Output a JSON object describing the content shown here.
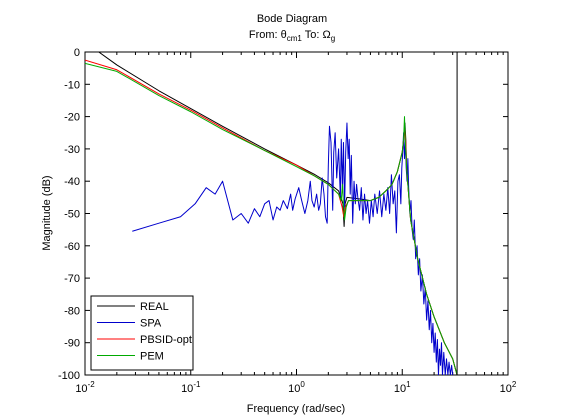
{
  "chart_data": {
    "type": "line",
    "title": "Bode Diagram",
    "subtitle": "From: θ_cm1  To: Ω_g",
    "subtitle_parts": {
      "from": "From: θ",
      "from_sub": "cm1",
      "to": "  To: Ω",
      "to_sub": "g"
    },
    "xlabel": "Frequency  (rad/sec)",
    "ylabel": "Magnitude (dB)",
    "xscale": "log",
    "xlim": [
      0.01,
      100
    ],
    "ylim": [
      -100,
      0
    ],
    "grid": false,
    "x_ticks": [
      0.01,
      0.1,
      1,
      10,
      100
    ],
    "x_tick_labels": [
      {
        "base": "10",
        "exp": "-2"
      },
      {
        "base": "10",
        "exp": "-1"
      },
      {
        "base": "10",
        "exp": "0"
      },
      {
        "base": "10",
        "exp": "1"
      },
      {
        "base": "10",
        "exp": "2"
      }
    ],
    "y_ticks": [
      0,
      -10,
      -20,
      -30,
      -40,
      -50,
      -60,
      -70,
      -80,
      -90,
      -100
    ],
    "y_tick_labels": [
      "0",
      "-10",
      "-20",
      "-30",
      "-40",
      "-50",
      "-60",
      "-70",
      "-80",
      "-90",
      "-100"
    ],
    "vertical_line": {
      "x": 33,
      "color": "#000000"
    },
    "legend": {
      "position": "bottom-left"
    },
    "series": [
      {
        "name": "REAL",
        "color": "#000000",
        "points": [
          [
            0.0135,
            0
          ],
          [
            0.02,
            -4
          ],
          [
            0.05,
            -12
          ],
          [
            0.1,
            -17.5
          ],
          [
            0.2,
            -23
          ],
          [
            0.5,
            -30
          ],
          [
            1,
            -35
          ],
          [
            1.5,
            -38
          ],
          [
            2,
            -40.5
          ],
          [
            2.5,
            -43
          ],
          [
            2.75,
            -47
          ],
          [
            2.82,
            -54
          ],
          [
            2.88,
            -47
          ],
          [
            3,
            -45
          ],
          [
            4,
            -45.5
          ],
          [
            5,
            -46
          ],
          [
            6,
            -45
          ],
          [
            7,
            -43
          ],
          [
            8,
            -41
          ],
          [
            9,
            -37
          ],
          [
            10,
            -31
          ],
          [
            10.4,
            -26
          ],
          [
            10.6,
            -22
          ],
          [
            10.8,
            -27
          ],
          [
            11,
            -36
          ],
          [
            12,
            -52
          ],
          [
            14,
            -64
          ],
          [
            17,
            -75
          ],
          [
            20,
            -82
          ],
          [
            25,
            -90
          ],
          [
            30,
            -95
          ],
          [
            33,
            -100
          ]
        ]
      },
      {
        "name": "SPA",
        "color": "#0000cc",
        "points": [
          [
            0.028,
            -55.5
          ],
          [
            0.05,
            -53
          ],
          [
            0.08,
            -51
          ],
          [
            0.11,
            -47
          ],
          [
            0.14,
            -42
          ],
          [
            0.17,
            -44
          ],
          [
            0.2,
            -40
          ],
          [
            0.25,
            -52
          ],
          [
            0.3,
            -50
          ],
          [
            0.35,
            -53
          ],
          [
            0.4,
            -48.5
          ],
          [
            0.45,
            -51
          ],
          [
            0.5,
            -47
          ],
          [
            0.55,
            -46
          ],
          [
            0.6,
            -52
          ],
          [
            0.65,
            -48
          ],
          [
            0.7,
            -49
          ],
          [
            0.75,
            -46
          ],
          [
            0.82,
            -48.5
          ],
          [
            0.88,
            -44
          ],
          [
            0.92,
            -49
          ],
          [
            0.97,
            -45.5
          ],
          [
            1.05,
            -42
          ],
          [
            1.12,
            -46
          ],
          [
            1.2,
            -50
          ],
          [
            1.28,
            -46
          ],
          [
            1.35,
            -40
          ],
          [
            1.4,
            -46
          ],
          [
            1.47,
            -48
          ],
          [
            1.55,
            -44
          ],
          [
            1.62,
            -49
          ],
          [
            1.68,
            -47
          ],
          [
            1.75,
            -39
          ],
          [
            1.82,
            -44
          ],
          [
            1.88,
            -51
          ],
          [
            1.95,
            -53
          ],
          [
            2.0,
            -35
          ],
          [
            2.05,
            -23
          ],
          [
            2.12,
            -28
          ],
          [
            2.2,
            -49
          ],
          [
            2.25,
            -31
          ],
          [
            2.32,
            -25
          ],
          [
            2.4,
            -39
          ],
          [
            2.5,
            -30
          ],
          [
            2.6,
            -45
          ],
          [
            2.65,
            -27
          ],
          [
            2.72,
            -42
          ],
          [
            2.78,
            -28
          ],
          [
            2.85,
            -48
          ],
          [
            2.92,
            -31
          ],
          [
            3.0,
            -22
          ],
          [
            3.08,
            -33
          ],
          [
            3.15,
            -27
          ],
          [
            3.22,
            -44
          ],
          [
            3.3,
            -32
          ],
          [
            3.4,
            -53
          ],
          [
            3.5,
            -40
          ],
          [
            3.6,
            -47
          ],
          [
            3.7,
            -41
          ],
          [
            3.8,
            -45
          ],
          [
            3.95,
            -49
          ],
          [
            4.1,
            -42
          ],
          [
            4.25,
            -52
          ],
          [
            4.4,
            -44
          ],
          [
            4.55,
            -50
          ],
          [
            4.7,
            -46
          ],
          [
            4.9,
            -53
          ],
          [
            5.1,
            -46
          ],
          [
            5.3,
            -51
          ],
          [
            5.5,
            -44
          ],
          [
            5.8,
            -50
          ],
          [
            6.1,
            -43
          ],
          [
            6.4,
            -51
          ],
          [
            6.7,
            -44
          ],
          [
            7.0,
            -49
          ],
          [
            7.3,
            -42
          ],
          [
            7.6,
            -50
          ],
          [
            7.9,
            -38
          ],
          [
            8.2,
            -47
          ],
          [
            8.5,
            -43
          ],
          [
            8.8,
            -56
          ],
          [
            9.1,
            -40
          ],
          [
            9.4,
            -38
          ],
          [
            9.7,
            -47
          ],
          [
            9.9,
            -36
          ],
          [
            10.1,
            -31
          ],
          [
            10.3,
            -25
          ],
          [
            10.5,
            -33
          ],
          [
            10.7,
            -28
          ],
          [
            10.9,
            -36
          ],
          [
            11.1,
            -40
          ],
          [
            11.3,
            -33
          ],
          [
            11.5,
            -42
          ],
          [
            11.8,
            -50
          ],
          [
            12.1,
            -46
          ],
          [
            12.4,
            -55
          ],
          [
            12.7,
            -58
          ],
          [
            13.0,
            -52
          ],
          [
            13.4,
            -64
          ],
          [
            13.8,
            -60
          ],
          [
            14.2,
            -69
          ],
          [
            14.6,
            -64
          ],
          [
            15.0,
            -74
          ],
          [
            15.5,
            -69
          ],
          [
            16.0,
            -78
          ],
          [
            16.5,
            -73
          ],
          [
            17.0,
            -83
          ],
          [
            17.5,
            -77
          ],
          [
            18.0,
            -86
          ],
          [
            18.5,
            -80
          ],
          [
            19.0,
            -90
          ],
          [
            19.5,
            -84
          ],
          [
            20.0,
            -93
          ],
          [
            20.5,
            -87
          ],
          [
            21.0,
            -96
          ],
          [
            21.5,
            -89
          ],
          [
            22.0,
            -100
          ],
          [
            22.5,
            -92
          ],
          [
            23.0,
            -97
          ],
          [
            23.5,
            -90
          ],
          [
            24.0,
            -100
          ],
          [
            24.7,
            -93
          ],
          [
            25.5,
            -100
          ],
          [
            26.2,
            -95
          ],
          [
            27.0,
            -100
          ],
          [
            27.7,
            -96
          ],
          [
            28.5,
            -100
          ],
          [
            29.3,
            -97
          ],
          [
            30.0,
            -100
          ]
        ]
      },
      {
        "name": "PBSID-opt",
        "color": "#ff0000",
        "points": [
          [
            0.01,
            -2.5
          ],
          [
            0.02,
            -5.5
          ],
          [
            0.05,
            -13
          ],
          [
            0.1,
            -18
          ],
          [
            0.2,
            -23.5
          ],
          [
            0.5,
            -30.5
          ],
          [
            1,
            -35
          ],
          [
            1.5,
            -38.5
          ],
          [
            2,
            -41
          ],
          [
            2.5,
            -44
          ],
          [
            2.7,
            -48
          ],
          [
            2.8,
            -51
          ],
          [
            2.9,
            -48
          ],
          [
            3.1,
            -46
          ],
          [
            4,
            -46
          ],
          [
            5,
            -46
          ],
          [
            6,
            -45
          ],
          [
            7,
            -43
          ],
          [
            8,
            -41
          ],
          [
            9,
            -37
          ],
          [
            10,
            -31
          ],
          [
            10.4,
            -26
          ],
          [
            10.6,
            -24
          ],
          [
            10.8,
            -28
          ],
          [
            11,
            -36
          ],
          [
            12,
            -52
          ],
          [
            14,
            -64
          ],
          [
            17,
            -75
          ],
          [
            20,
            -82
          ],
          [
            25,
            -90
          ],
          [
            30,
            -95
          ],
          [
            33,
            -100
          ]
        ]
      },
      {
        "name": "PEM",
        "color": "#00aa00",
        "points": [
          [
            0.01,
            -3.5
          ],
          [
            0.02,
            -6
          ],
          [
            0.05,
            -13.5
          ],
          [
            0.1,
            -18.5
          ],
          [
            0.2,
            -24
          ],
          [
            0.5,
            -30.5
          ],
          [
            1,
            -35.5
          ],
          [
            1.5,
            -38.5
          ],
          [
            2,
            -41
          ],
          [
            2.5,
            -44
          ],
          [
            2.65,
            -46
          ],
          [
            2.72,
            -41
          ],
          [
            2.78,
            -47
          ],
          [
            2.85,
            -52
          ],
          [
            2.95,
            -48
          ],
          [
            3.1,
            -46
          ],
          [
            4,
            -46
          ],
          [
            5,
            -46
          ],
          [
            6,
            -45
          ],
          [
            7,
            -43
          ],
          [
            8,
            -41
          ],
          [
            9,
            -37
          ],
          [
            10,
            -31
          ],
          [
            10.3,
            -27
          ],
          [
            10.5,
            -20
          ],
          [
            10.7,
            -28
          ],
          [
            11,
            -36
          ],
          [
            12,
            -52
          ],
          [
            14,
            -64
          ],
          [
            17,
            -75
          ],
          [
            20,
            -82
          ],
          [
            25,
            -90
          ],
          [
            30,
            -95
          ],
          [
            33,
            -100
          ]
        ]
      }
    ]
  }
}
